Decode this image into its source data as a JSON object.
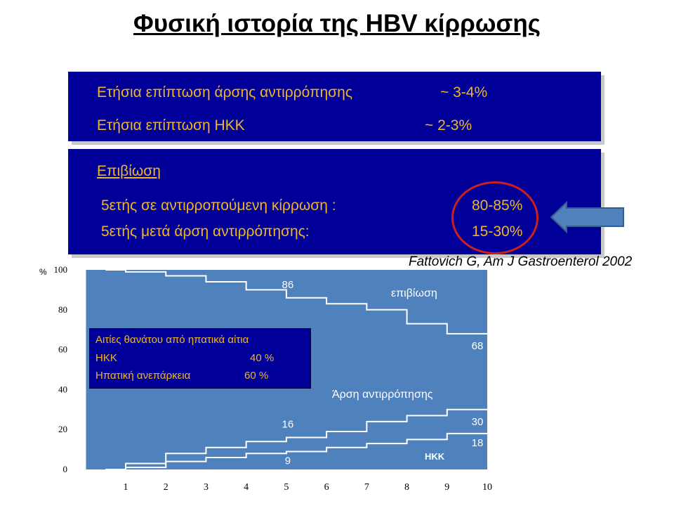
{
  "title": "Φυσική ιστορία της HBV κίρρωσης",
  "incidence": {
    "decompensation_label": "Ετήσια επίπτωση άρσης αντιρρόπησης",
    "decompensation_value": "~ 3-4%",
    "hcc_label": "Ετήσια επίπτωση ΗΚΚ",
    "hcc_value": "~ 2-3%"
  },
  "survival": {
    "heading": "Επιβίωση",
    "compensated_label": "5ετής σε αντιρροπούμενη κίρρωση :",
    "compensated_value": "80-85%",
    "decompensated_label": "5ετής μετά άρση αντιρρόπησης:",
    "decompensated_value": "15-30%"
  },
  "citation": "Fattovich G,  Am J Gastroenterol 2002",
  "causes_box": {
    "title": "Αιτίες θανάτου από ηπατικά αίτια",
    "hcc_label": "ΗΚΚ",
    "hcc_value": "40 %",
    "failure_label": "Ηπατική ανεπάρκεια",
    "failure_value": "60 %"
  },
  "colors": {
    "panel": "#000099",
    "panel_text": "#f0b429",
    "plot_bg": "#4f81bd",
    "curve": "#ffffff",
    "highlight": "#cc1f1f",
    "arrow": "#4f81bd"
  },
  "chart_data": {
    "type": "line",
    "ylabel": "%",
    "xlim": [
      0.5,
      10
    ],
    "ylim": [
      0,
      100
    ],
    "x_ticks": [
      1,
      2,
      3,
      4,
      5,
      6,
      7,
      8,
      9,
      10
    ],
    "y_ticks": [
      0,
      20,
      40,
      60,
      80,
      100
    ],
    "series": [
      {
        "name": "επιβίωση",
        "x": [
          0.5,
          1,
          2,
          3,
          4,
          5,
          6,
          7,
          8,
          9,
          10
        ],
        "y": [
          100,
          99,
          97,
          94,
          90,
          86,
          83,
          80,
          73,
          68,
          68
        ],
        "labels": [
          {
            "x": 5,
            "y": 86,
            "text": "86"
          },
          {
            "x": 10,
            "y": 68,
            "text": "68"
          }
        ]
      },
      {
        "name": "Άρση αντιρρόπησης",
        "x": [
          0.5,
          1,
          2,
          3,
          4,
          5,
          6,
          7,
          8,
          9,
          10
        ],
        "y": [
          0,
          3,
          8,
          11,
          14,
          16,
          19,
          24,
          27,
          30,
          30
        ],
        "labels": [
          {
            "x": 5,
            "y": 16,
            "text": "16"
          },
          {
            "x": 10,
            "y": 30,
            "text": "30"
          }
        ]
      },
      {
        "name": "ΗΚΚ",
        "x": [
          0.5,
          1,
          2,
          3,
          4,
          5,
          6,
          7,
          8,
          9,
          10
        ],
        "y": [
          0,
          1,
          4,
          6,
          8,
          9,
          11,
          13,
          15,
          18,
          18
        ],
        "labels": [
          {
            "x": 5,
            "y": 9,
            "text": "9"
          },
          {
            "x": 10,
            "y": 18,
            "text": "18"
          }
        ]
      }
    ]
  }
}
